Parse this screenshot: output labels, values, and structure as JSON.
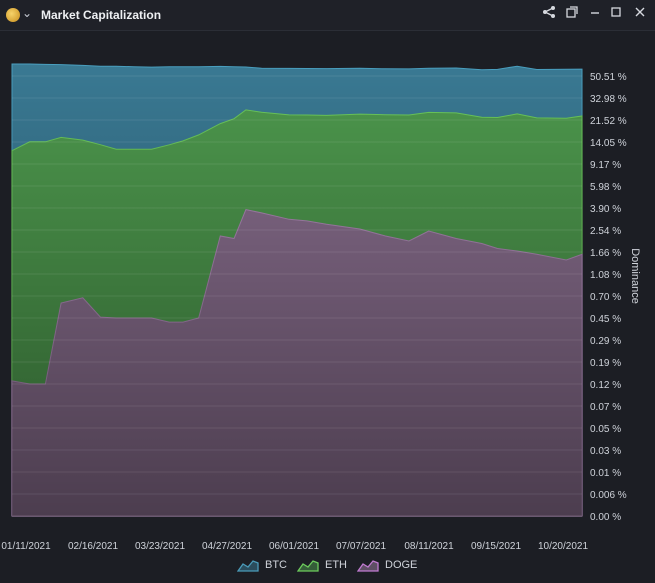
{
  "window": {
    "title": "Market Capitalization",
    "controls": [
      "share",
      "popout",
      "minimize",
      "maximize",
      "close"
    ]
  },
  "colors": {
    "background": "#1c1e24",
    "btc": "#3a7a94",
    "eth": "#4e9a4e",
    "doge": "#8a6f8f"
  },
  "chart_data": {
    "type": "area",
    "stacked": true,
    "ylabel": "Dominance",
    "y_scale": "nonlinear",
    "y_ticks": [
      "50.51 %",
      "32.98 %",
      "21.52 %",
      "14.05 %",
      "9.17 %",
      "5.98 %",
      "3.90 %",
      "2.54 %",
      "1.66 %",
      "1.08 %",
      "0.70 %",
      "0.45 %",
      "0.29 %",
      "0.19 %",
      "0.12 %",
      "0.07 %",
      "0.05 %",
      "0.03 %",
      "0.01 %",
      "0.006 %",
      "0.00 %"
    ],
    "x_ticks": [
      "01/11/2021",
      "02/16/2021",
      "03/23/2021",
      "04/27/2021",
      "06/01/2021",
      "07/07/2021",
      "08/11/2021",
      "09/15/2021",
      "10/20/2021"
    ],
    "x": [
      "2021-01-11",
      "2021-01-20",
      "2021-01-28",
      "2021-02-05",
      "2021-02-16",
      "2021-02-25",
      "2021-03-05",
      "2021-03-14",
      "2021-03-23",
      "2021-04-01",
      "2021-04-08",
      "2021-04-16",
      "2021-04-27",
      "2021-05-04",
      "2021-05-10",
      "2021-05-18",
      "2021-06-01",
      "2021-06-10",
      "2021-06-20",
      "2021-07-07",
      "2021-07-20",
      "2021-08-01",
      "2021-08-11",
      "2021-08-25",
      "2021-09-07",
      "2021-09-15",
      "2021-09-25",
      "2021-10-05",
      "2021-10-20",
      "2021-10-28"
    ],
    "series": [
      {
        "name": "BTC",
        "values": [
          68,
          66,
          65,
          63,
          62,
          61,
          62,
          61,
          60,
          60,
          59,
          57,
          54,
          51,
          46,
          44,
          45,
          45,
          45,
          45,
          44,
          44,
          44,
          45,
          43,
          44,
          50,
          44,
          45,
          44
        ]
      },
      {
        "name": "ETH",
        "values": [
          12,
          14,
          14,
          15,
          14,
          13,
          12,
          12,
          12,
          13,
          14,
          16,
          18,
          20,
          23,
          22,
          21,
          21,
          21,
          22,
          22,
          22,
          23,
          23,
          21,
          21,
          23,
          21,
          21,
          22
        ]
      },
      {
        "name": "DOGE",
        "values": [
          0.13,
          0.12,
          0.12,
          0.62,
          0.68,
          0.46,
          0.45,
          0.45,
          0.45,
          0.42,
          0.42,
          0.45,
          2.3,
          2.2,
          3.8,
          3.6,
          3.2,
          3.1,
          2.9,
          2.6,
          2.3,
          2.1,
          2.5,
          2.2,
          2.0,
          1.8,
          1.7,
          1.6,
          1.45,
          1.6
        ]
      }
    ],
    "legend": [
      "BTC",
      "ETH",
      "DOGE"
    ],
    "legend_position": "bottom",
    "grid": true
  }
}
